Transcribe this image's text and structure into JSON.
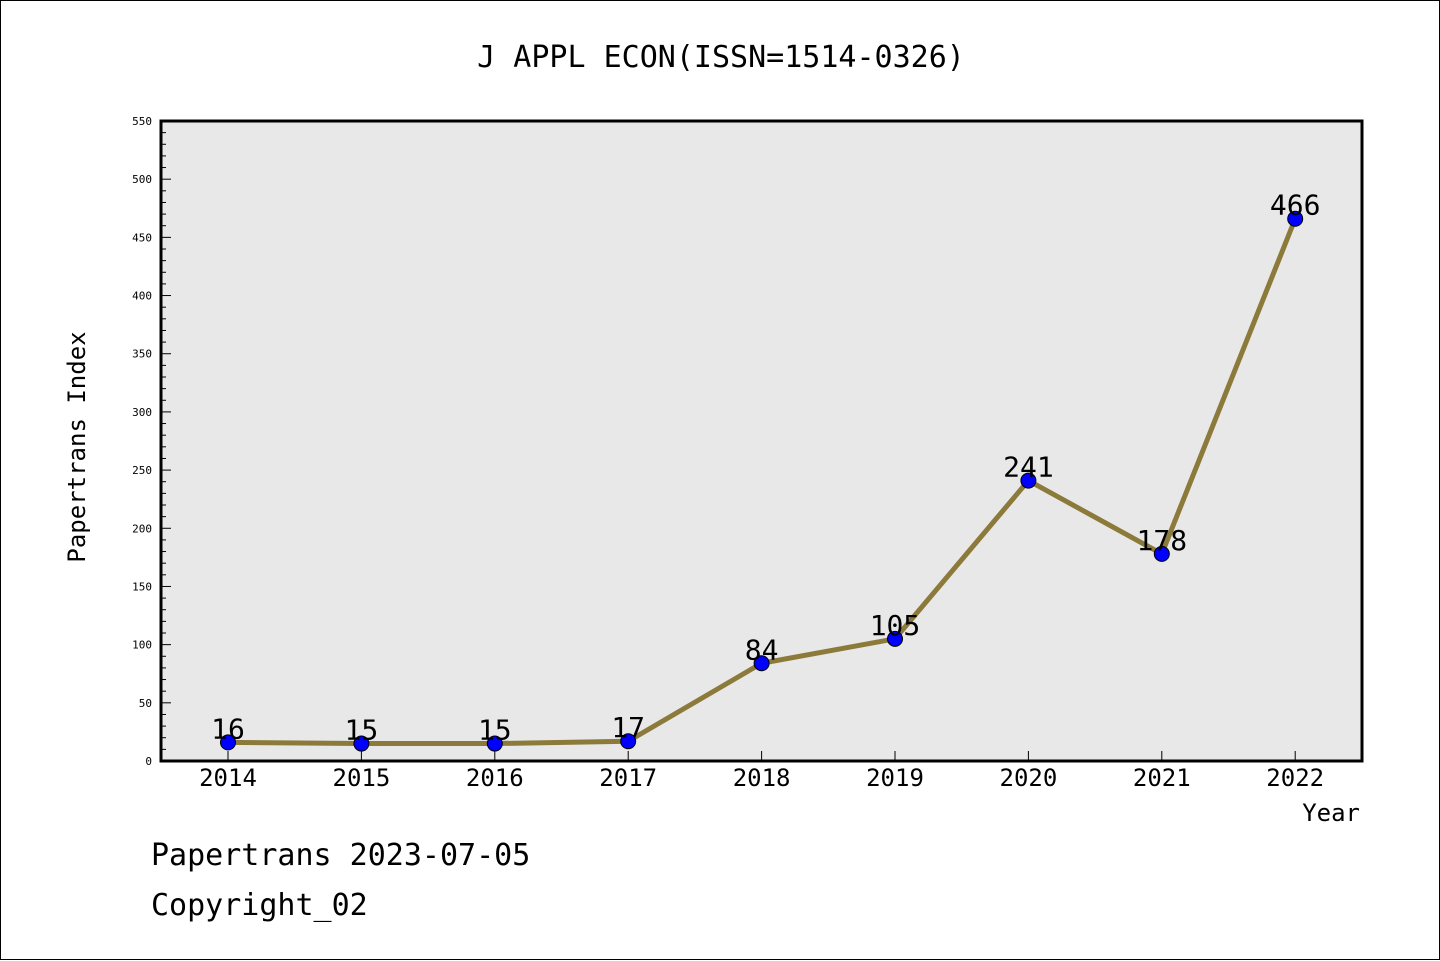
{
  "chart_data": {
    "type": "line",
    "title": "J APPL ECON(ISSN=1514-0326)",
    "xlabel": "Year",
    "ylabel": "Papertrans Index",
    "ylim": [
      0,
      550
    ],
    "y_major_ticks": [
      0,
      50,
      100,
      150,
      200,
      250,
      300,
      350,
      400,
      450,
      500,
      550
    ],
    "categories": [
      "2014",
      "2015",
      "2016",
      "2017",
      "2018",
      "2019",
      "2020",
      "2021",
      "2022"
    ],
    "values": [
      16,
      15,
      15,
      17,
      84,
      105,
      241,
      178,
      466
    ],
    "data_labels": [
      "16",
      "15",
      "15",
      "17",
      "84",
      "105",
      "241",
      "178",
      "466"
    ],
    "colors": {
      "line": "#8b7a3a",
      "marker": "#0000ff",
      "plot_background": "#e8e8e8"
    },
    "grid": false,
    "legend": "none"
  },
  "footer": {
    "line1": "Papertrans 2023-07-05",
    "line2": "Copyright_02"
  }
}
